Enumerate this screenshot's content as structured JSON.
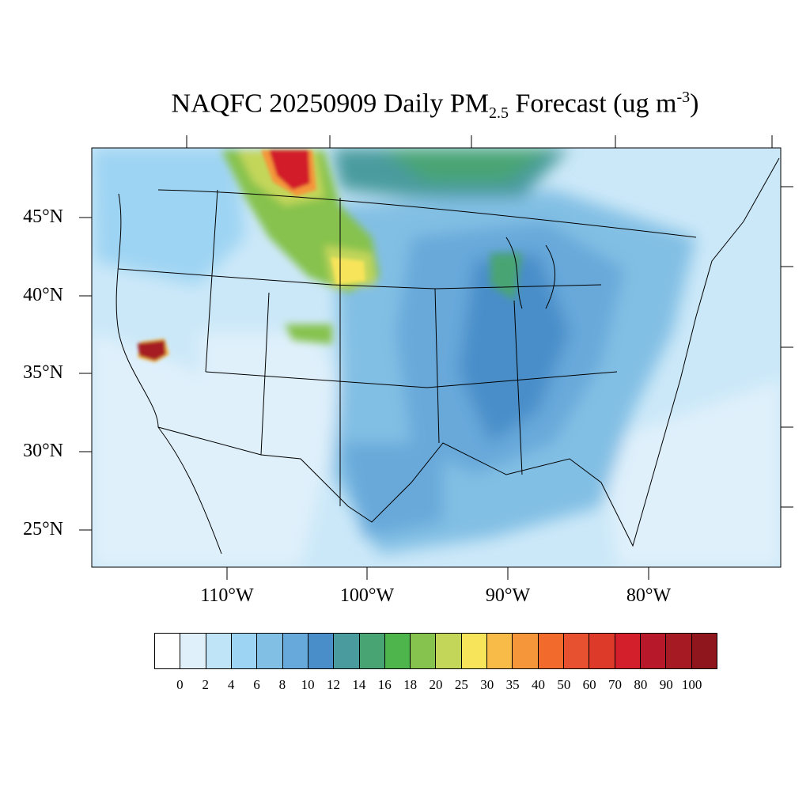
{
  "title": {
    "prefix": "NAQFC 20250909 Daily PM",
    "subscript": "2.5",
    "middle": " Forecast (ug m",
    "superscript": "-3",
    "suffix": ")"
  },
  "map": {
    "projection": "lambert-conformal",
    "region": "CONUS",
    "lat_labels": [
      "45°N",
      "40°N",
      "35°N",
      "30°N",
      "25°N"
    ],
    "lon_labels": [
      "110°W",
      "100°W",
      "90°W",
      "80°W"
    ],
    "hotspots": [
      {
        "name": "southern-sierra-fire-plume",
        "level": 100
      },
      {
        "name": "northern-rockies-smoke-plume",
        "level": 90
      },
      {
        "name": "northern-plains-smoke",
        "level": 30
      },
      {
        "name": "colorado-smoke",
        "level": 25
      }
    ]
  },
  "colorbar": {
    "labels": [
      "0",
      "2",
      "4",
      "6",
      "8",
      "10",
      "12",
      "14",
      "16",
      "18",
      "20",
      "25",
      "30",
      "35",
      "40",
      "50",
      "60",
      "70",
      "80",
      "90",
      "100"
    ],
    "colors": [
      "#ffffff",
      "#dff0fb",
      "#bfe4f7",
      "#9ed4f3",
      "#82bfe4",
      "#67a9da",
      "#4a8ec9",
      "#4a9b9e",
      "#48a473",
      "#4db54b",
      "#86c24e",
      "#c3d65a",
      "#f7e45a",
      "#f8bb47",
      "#f5963a",
      "#f26a2c",
      "#e85130",
      "#de3a2a",
      "#d31f2b",
      "#b7182a",
      "#a51a23",
      "#8e161c"
    ]
  }
}
